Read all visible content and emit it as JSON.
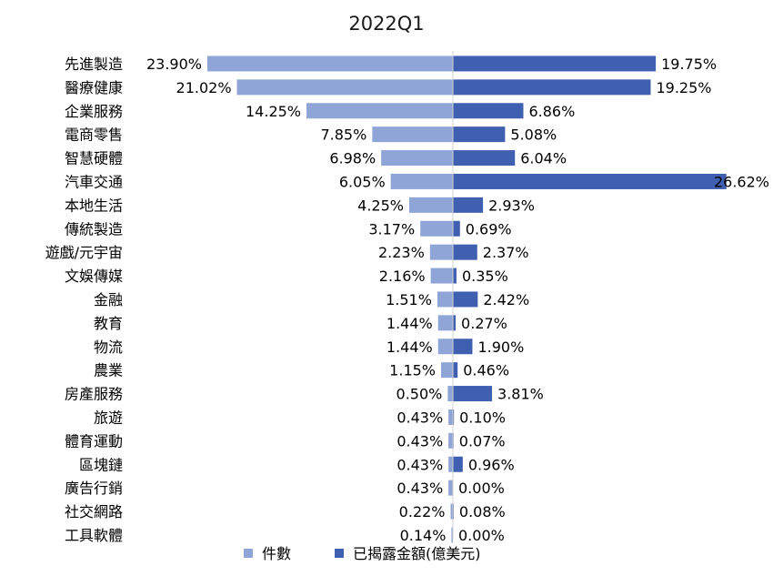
{
  "chart_data": {
    "type": "bar",
    "title": "2022Q1",
    "categories": [
      "先進製造",
      "醫療健康",
      "企業服務",
      "電商零售",
      "智慧硬體",
      "汽車交通",
      "本地生活",
      "傳統製造",
      "遊戲/元宇宙",
      "文娛傳媒",
      "金融",
      "教育",
      "物流",
      "農業",
      "房產服務",
      "旅遊",
      "體育運動",
      "區塊鏈",
      "廣告行銷",
      "社交網路",
      "工具軟體"
    ],
    "series": [
      {
        "name": "件數",
        "color": "#8fa5d8",
        "values": [
          23.9,
          21.02,
          14.25,
          7.85,
          6.98,
          6.05,
          4.25,
          3.17,
          2.23,
          2.16,
          1.51,
          1.44,
          1.44,
          1.15,
          0.5,
          0.43,
          0.43,
          0.43,
          0.43,
          0.22,
          0.14
        ],
        "labels": [
          "23.90%",
          "21.02%",
          "14.25%",
          "7.85%",
          "6.98%",
          "6.05%",
          "4.25%",
          "3.17%",
          "2.23%",
          "2.16%",
          "1.51%",
          "1.44%",
          "1.44%",
          "1.15%",
          "0.50%",
          "0.43%",
          "0.43%",
          "0.43%",
          "0.43%",
          "0.22%",
          "0.14%"
        ]
      },
      {
        "name": "已揭露金額(億美元)",
        "color": "#3f5fb0",
        "values": [
          19.75,
          19.25,
          6.86,
          5.08,
          6.04,
          26.62,
          2.93,
          0.69,
          2.37,
          0.35,
          2.42,
          0.27,
          1.9,
          0.46,
          3.81,
          0.1,
          0.07,
          0.96,
          0.0,
          0.08,
          0.0
        ],
        "labels": [
          "19.75%",
          "19.25%",
          "6.86%",
          "5.08%",
          "6.04%",
          "26.62%",
          "2.93%",
          "0.69%",
          "2.37%",
          "0.35%",
          "2.42%",
          "0.27%",
          "1.90%",
          "0.46%",
          "3.81%",
          "0.10%",
          "0.07%",
          "0.96%",
          "0.00%",
          "0.08%",
          "0.00%"
        ]
      }
    ],
    "grid": false,
    "legend_position": "bottom"
  }
}
